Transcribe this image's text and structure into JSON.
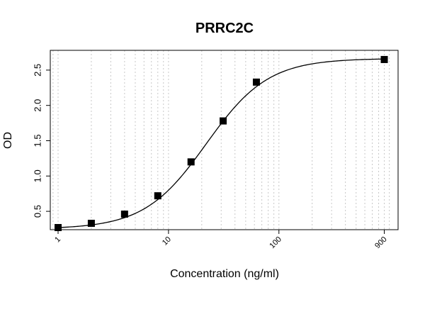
{
  "chart_data": {
    "type": "scatter",
    "title": "PRRC2C",
    "xlabel": "Concentration (ng/ml)",
    "ylabel": "OD",
    "x_scale": "log",
    "xlim": [
      0.85,
      1200
    ],
    "ylim": [
      0.24,
      2.78
    ],
    "x_tick_values": [
      1,
      10,
      100,
      900
    ],
    "x_tick_labels": [
      "1",
      "10",
      "100",
      "900"
    ],
    "y_tick_values": [
      0.5,
      1.0,
      1.5,
      2.0,
      2.5
    ],
    "y_tick_labels": [
      "0.5",
      "1.0",
      "1.5",
      "2.0",
      "2.5"
    ],
    "grid": true,
    "series": [
      {
        "x": [
          1,
          2,
          4,
          8,
          16,
          31.25,
          62.5,
          900
        ],
        "y": [
          0.27,
          0.33,
          0.46,
          0.72,
          1.2,
          1.78,
          2.33,
          2.65
        ]
      }
    ],
    "fit_curve": {
      "model": "4PL",
      "bottom": 0.25,
      "top": 2.665,
      "ec50": 22,
      "hill": 1.55
    }
  }
}
